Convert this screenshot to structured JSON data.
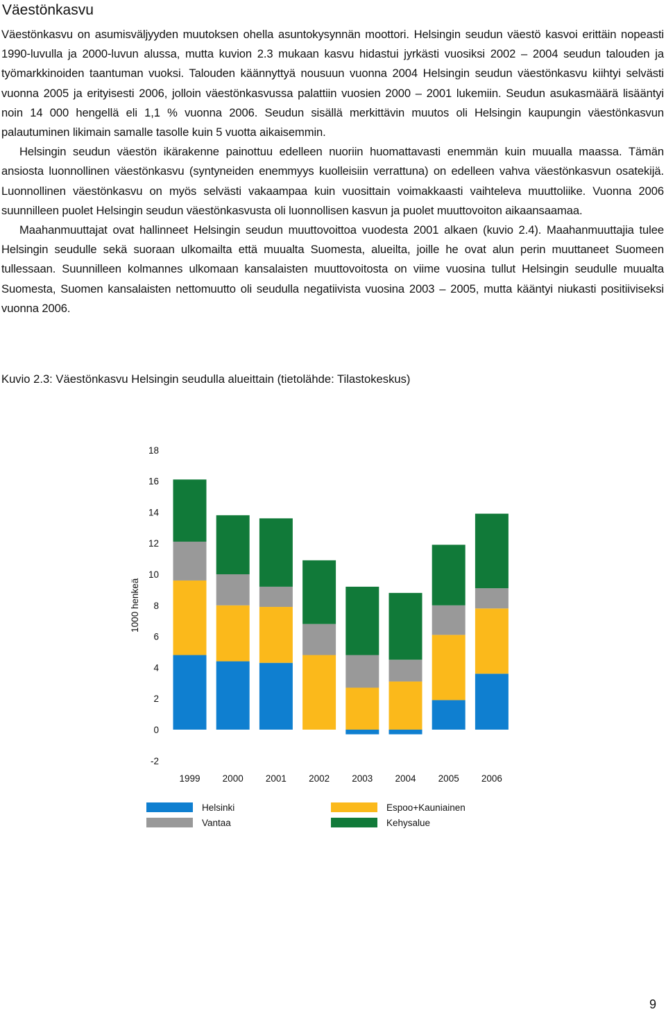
{
  "page": {
    "title": "Väestönkasvu",
    "paragraphs": [
      "Väestönkasvu on asumisväljyyden muutoksen ohella asuntokysynnän moottori. Helsingin seudun väestö kasvoi erittäin nopeasti 1990-luvulla ja 2000-luvun alussa, mutta kuvion 2.3 mukaan kasvu hidastui jyrkästi vuosiksi 2002 – 2004 seudun talouden ja työmarkkinoiden taantuman vuoksi. Talouden käännyttyä nousuun vuonna 2004 Helsingin seudun väestönkasvu kiihtyi selvästi vuonna 2005 ja erityisesti 2006, jolloin väestönkasvussa palattiin vuosien 2000 – 2001 lukemiin. Seudun asukasmäärä lisääntyi noin 14 000 hengellä eli 1,1 % vuonna 2006. Seudun sisällä merkittävin muutos oli Helsingin kaupungin väestönkasvun palautuminen likimain samalle tasolle kuin 5 vuotta aikaisemmin.",
      "Helsingin seudun väestön ikärakenne painottuu edelleen nuoriin huomattavasti enemmän kuin muualla maassa. Tämän ansiosta luonnollinen väestönkasvu (syntyneiden enemmyys kuolleisiin verrattuna) on edelleen vahva väestönkasvun osatekijä. Luonnollinen väestönkasvu on myös selvästi vakaampaa kuin vuosittain voimakkaasti vaihteleva muuttoliike. Vuonna 2006 suunnilleen puolet Helsingin seudun väestönkasvusta oli luonnollisen kasvun ja puolet muuttovoiton aikaansaamaa.",
      "Maahanmuuttajat ovat hallinneet Helsingin seudun muuttovoittoa vuodesta 2001 alkaen (kuvio 2.4). Maahanmuuttajia tulee Helsingin seudulle sekä suoraan ulkomailta että muualta Suomesta, alueilta, joille he ovat alun perin muuttaneet Suomeen tullessaan. Suunnilleen kolmannes ulkomaan kansalaisten muuttovoitosta on viime vuosina tullut Helsingin seudulle muualta Suomesta, Suomen kansalaisten nettomuutto oli seudulla negatiivista vuosina 2003 – 2005, mutta kääntyi niukasti positiiviseksi vuonna 2006."
    ],
    "caption": "Kuvio 2.3: Väestönkasvu Helsingin seudulla alueittain (tietolähde: Tilastokeskus)",
    "page_number": "9"
  },
  "chart_data": {
    "type": "bar",
    "stacked": true,
    "categories": [
      "1999",
      "2000",
      "2001",
      "2002",
      "2003",
      "2004",
      "2005",
      "2006"
    ],
    "ylabel": "1000 henkeä",
    "ylim": [
      -2,
      18
    ],
    "yticks": [
      -2,
      0,
      2,
      4,
      6,
      8,
      10,
      12,
      14,
      16,
      18
    ],
    "grid": false,
    "legend_position": "bottom",
    "series": [
      {
        "name": "Helsinki",
        "color": "#0f7fd0",
        "values": [
          4.8,
          4.4,
          4.3,
          0.0,
          -0.3,
          -0.3,
          1.9,
          3.6
        ]
      },
      {
        "name": "Espoo+Kauniainen",
        "color": "#fbb91b",
        "values": [
          4.8,
          3.6,
          3.6,
          4.8,
          2.7,
          3.1,
          4.2,
          4.2
        ]
      },
      {
        "name": "Vantaa",
        "color": "#999999",
        "values": [
          2.5,
          2.0,
          1.3,
          2.0,
          2.1,
          1.4,
          1.9,
          1.3
        ]
      },
      {
        "name": "Kehysalue",
        "color": "#117a39",
        "values": [
          4.0,
          3.8,
          4.4,
          4.1,
          4.4,
          4.3,
          3.9,
          4.8
        ]
      }
    ]
  }
}
